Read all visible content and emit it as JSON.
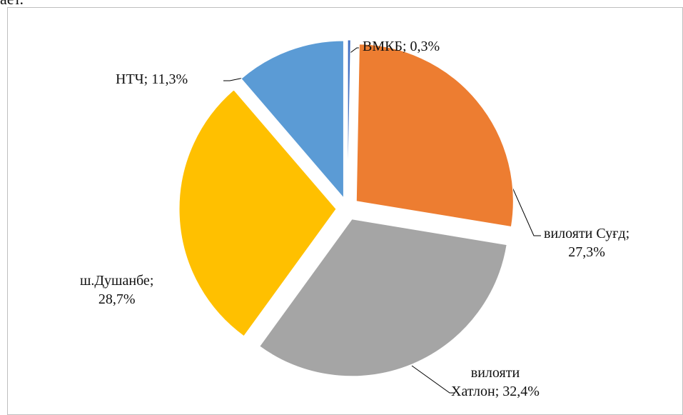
{
  "fragment": "ает.",
  "chart_data": {
    "type": "pie",
    "values": [
      0.3,
      27.3,
      32.4,
      28.7,
      11.3
    ],
    "value_labels": [
      "ВМКБ; 0,3%",
      "вилояти Суғд;\n27,3%",
      "вилояти\nХатлон; 32,4%",
      "ш.Душанбе;\n28,7%",
      "НТЧ; 11,3%"
    ],
    "colors": [
      "#4472c4",
      "#ed7d31",
      "#a5a5a5",
      "#ffc000",
      "#5b9bd5"
    ],
    "exploded": true
  }
}
